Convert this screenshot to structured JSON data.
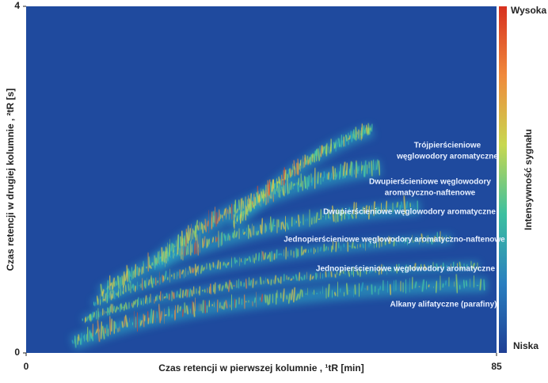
{
  "chart_data": {
    "type": "heatmap",
    "title_x": "Czas retencji w pierwszej kolumnie , ¹tR [min]",
    "title_y": "Czas retencji w drugiej kolumnie , ²tR [s]",
    "xlim": [
      0,
      85
    ],
    "xticks": [
      0,
      85
    ],
    "ylim": [
      0,
      4
    ],
    "yticks": [
      0,
      4
    ],
    "annotations": [
      [
        "Trójpierścieniowe",
        "węglowodory aromatyczne"
      ],
      [
        "Dwupierścieniowe węglowodory",
        "aromatyczno-naftenowe"
      ],
      [
        "Dwupierścieniowe węglowodory aromatyczne"
      ],
      [
        "Jednopierścieniowe węglowodory aromatyczno-naftenowe"
      ],
      [
        "Jednopierścieniowe węglowodory aromatyczne"
      ],
      [
        "Alkany alifatyczne (parafiny)"
      ]
    ],
    "colorbar": {
      "high": "Wysoka",
      "low": "Niska",
      "label": "Intensywność sygnału"
    }
  }
}
